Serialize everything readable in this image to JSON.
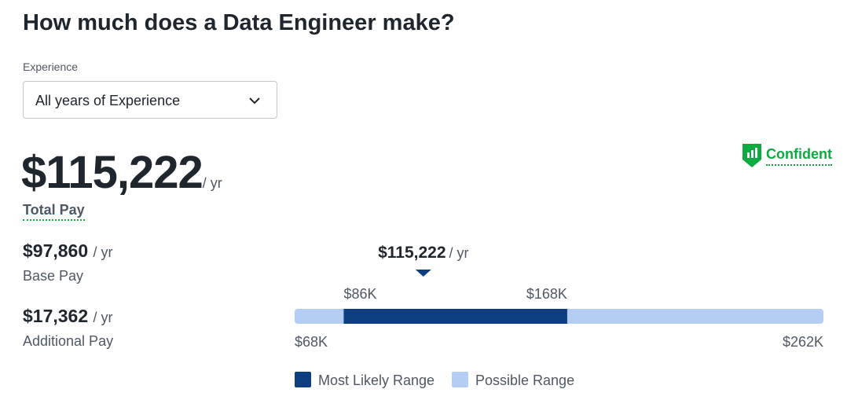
{
  "header": {
    "title": "How much does a Data Engineer make?"
  },
  "filter": {
    "label": "Experience",
    "selected": "All years of Experience"
  },
  "confidence": "Confident",
  "total_pay": {
    "amount": "$115,222",
    "unit": "/ yr",
    "label": "Total Pay"
  },
  "breakdown": [
    {
      "amount": "$97,860",
      "unit": "/ yr",
      "label": "Base Pay"
    },
    {
      "amount": "$17,362",
      "unit": "/ yr",
      "label": "Additional Pay"
    }
  ],
  "range": {
    "median": {
      "value": 115222,
      "label": "$115,222"
    },
    "median_unit": "/ yr",
    "likely": [
      {
        "value": 86000,
        "label": "$86K"
      },
      {
        "value": 168000,
        "label": "$168K"
      }
    ],
    "possible": [
      {
        "value": 68000,
        "label": "$68K"
      },
      {
        "value": 262000,
        "label": "$262K"
      }
    ],
    "likely_color": "#0d3f80",
    "possible_color": "#b3cdf5",
    "legend": [
      "Most Likely Range",
      "Possible Range"
    ]
  }
}
